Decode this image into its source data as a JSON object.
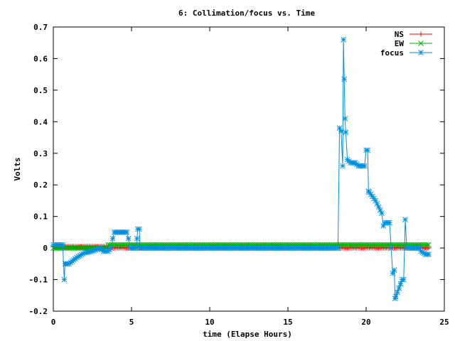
{
  "chart_data": {
    "type": "line",
    "title": "6: Collimation/focus vs. Time",
    "xlabel": "time (Elapse Hours)",
    "ylabel": "Volts",
    "xlim": [
      0,
      25
    ],
    "ylim": [
      -0.2,
      0.7
    ],
    "x_ticks": [
      0,
      5,
      10,
      15,
      20,
      25
    ],
    "x_tick_labels": [
      "0",
      "5",
      "10",
      "15",
      "20",
      "25"
    ],
    "y_ticks": [
      -0.2,
      -0.1,
      0,
      0.1,
      0.2,
      0.3,
      0.4,
      0.5,
      0.6,
      0.7
    ],
    "y_tick_labels": [
      "-0.2",
      "-0.1",
      "0",
      "0.1",
      "0.2",
      "0.3",
      "0.4",
      "0.5",
      "0.6",
      "0.7"
    ],
    "grid": false,
    "legend_position": "top-right",
    "series": [
      {
        "name": "NS",
        "color": "#ff0000",
        "marker": "plus",
        "sampling": {
          "start": 0,
          "end": 24,
          "step": 0.1
        },
        "constant_ranges": [
          {
            "from": 0,
            "to": 3.5,
            "value": 0.005
          },
          {
            "from": 3.5,
            "to": 24,
            "value": 0.0
          }
        ]
      },
      {
        "name": "EW",
        "color": "#00b000",
        "marker": "cross",
        "sampling": {
          "start": 0,
          "end": 24,
          "step": 0.1
        },
        "constant_ranges": [
          {
            "from": 0,
            "to": 3.5,
            "value": 0.0
          },
          {
            "from": 3.5,
            "to": 24,
            "value": 0.01
          }
        ]
      },
      {
        "name": "focus",
        "color": "#0090e0",
        "marker": "star",
        "sampling": {
          "start": 0,
          "end": 24,
          "step": 0.1
        },
        "keypoints": [
          [
            0,
            0.01
          ],
          [
            0.6,
            0.01
          ],
          [
            0.7,
            -0.1
          ],
          [
            0.75,
            -0.05
          ],
          [
            1.0,
            -0.05
          ],
          [
            1.5,
            -0.03
          ],
          [
            2.0,
            -0.015
          ],
          [
            2.5,
            -0.01
          ],
          [
            3.0,
            0.0
          ],
          [
            3.2,
            -0.01
          ],
          [
            3.5,
            -0.01
          ],
          [
            3.7,
            0.0
          ],
          [
            3.8,
            0.03
          ],
          [
            3.9,
            0.05
          ],
          [
            4.7,
            0.05
          ],
          [
            4.8,
            0.03
          ],
          [
            4.9,
            0.0
          ],
          [
            5.3,
            0.0
          ],
          [
            5.35,
            0.03
          ],
          [
            5.4,
            0.06
          ],
          [
            5.5,
            0.06
          ],
          [
            5.55,
            0.0
          ],
          [
            18.2,
            0.0
          ],
          [
            18.3,
            0.38
          ],
          [
            18.4,
            0.37
          ],
          [
            18.5,
            0.26
          ],
          [
            18.55,
            0.66
          ],
          [
            18.65,
            0.41
          ],
          [
            18.8,
            0.28
          ],
          [
            19.0,
            0.27
          ],
          [
            19.3,
            0.27
          ],
          [
            19.5,
            0.26
          ],
          [
            19.9,
            0.26
          ],
          [
            20.0,
            0.31
          ],
          [
            20.1,
            0.31
          ],
          [
            20.15,
            0.18
          ],
          [
            20.3,
            0.17
          ],
          [
            20.6,
            0.15
          ],
          [
            20.9,
            0.12
          ],
          [
            21.0,
            0.11
          ],
          [
            21.1,
            0.07
          ],
          [
            21.2,
            0.08
          ],
          [
            21.5,
            0.08
          ],
          [
            21.6,
            0.0
          ],
          [
            21.7,
            -0.08
          ],
          [
            21.8,
            -0.07
          ],
          [
            21.85,
            -0.16
          ],
          [
            22.0,
            -0.14
          ],
          [
            22.3,
            -0.1
          ],
          [
            22.4,
            -0.1
          ],
          [
            22.5,
            0.09
          ],
          [
            22.6,
            0.0
          ],
          [
            23.4,
            0.0
          ],
          [
            23.5,
            -0.01
          ],
          [
            23.8,
            -0.02
          ],
          [
            23.9,
            -0.02
          ]
        ]
      }
    ]
  }
}
